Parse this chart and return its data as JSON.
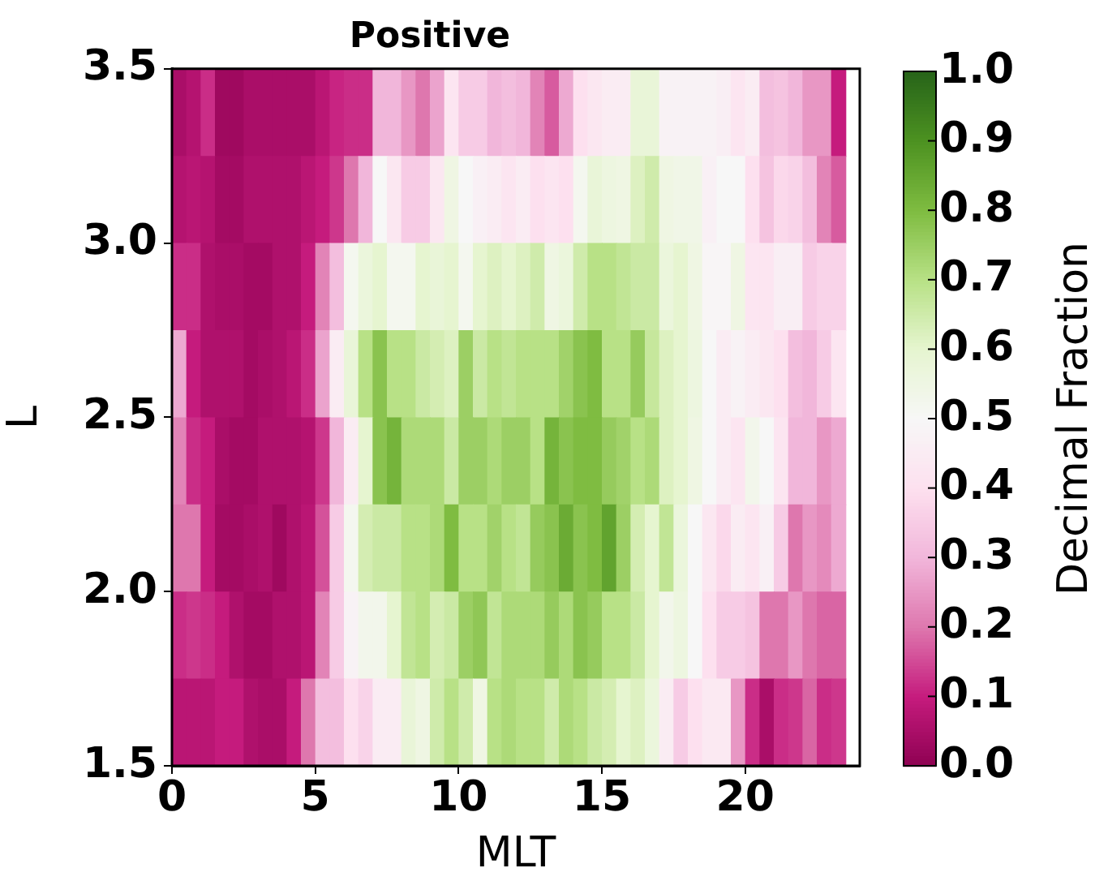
{
  "chart_data": {
    "type": "heatmap",
    "title": "Positive",
    "xlabel": "MLT",
    "ylabel": "L",
    "clabel": "Decimal Fraction",
    "x": [
      0.25,
      0.75,
      1.25,
      1.75,
      2.25,
      2.75,
      3.25,
      3.75,
      4.25,
      4.75,
      5.25,
      5.75,
      6.25,
      6.75,
      7.25,
      7.75,
      8.25,
      8.75,
      9.25,
      9.75,
      10.25,
      10.75,
      11.25,
      11.75,
      12.25,
      12.75,
      13.25,
      13.75,
      14.25,
      14.75,
      15.25,
      15.75,
      16.25,
      16.75,
      17.25,
      17.75,
      18.25,
      18.75,
      19.25,
      19.75,
      20.25,
      20.75,
      21.25,
      21.75,
      22.25,
      22.75,
      23.25
    ],
    "y": [
      3.375,
      3.125,
      2.875,
      2.625,
      2.375,
      2.125,
      1.875,
      1.625
    ],
    "cells": [
      [
        0.05,
        0.07,
        0.12,
        0.03,
        0.03,
        0.05,
        0.05,
        0.05,
        0.05,
        0.05,
        0.08,
        0.11,
        0.12,
        0.12,
        0.3,
        0.3,
        0.25,
        0.2,
        0.27,
        0.42,
        0.35,
        0.35,
        0.3,
        0.32,
        0.3,
        0.22,
        0.17,
        0.28,
        0.4,
        0.43,
        0.45,
        0.45,
        0.58,
        0.58,
        0.48,
        0.48,
        0.48,
        0.48,
        0.46,
        0.42,
        0.45,
        0.32,
        0.33,
        0.3,
        0.25,
        0.25,
        0.1
      ],
      [
        0.07,
        0.08,
        0.07,
        0.04,
        0.04,
        0.06,
        0.06,
        0.06,
        0.06,
        0.08,
        0.1,
        0.13,
        0.2,
        0.3,
        0.5,
        0.43,
        0.35,
        0.35,
        0.43,
        0.55,
        0.5,
        0.47,
        0.45,
        0.42,
        0.45,
        0.4,
        0.42,
        0.4,
        0.52,
        0.58,
        0.56,
        0.55,
        0.62,
        0.65,
        0.55,
        0.54,
        0.54,
        0.47,
        0.5,
        0.5,
        0.4,
        0.33,
        0.38,
        0.37,
        0.32,
        0.22,
        0.17
      ],
      [
        0.12,
        0.12,
        0.06,
        0.05,
        0.05,
        0.04,
        0.04,
        0.06,
        0.06,
        0.1,
        0.22,
        0.32,
        0.52,
        0.57,
        0.6,
        0.52,
        0.52,
        0.6,
        0.58,
        0.6,
        0.52,
        0.6,
        0.62,
        0.6,
        0.62,
        0.65,
        0.55,
        0.57,
        0.65,
        0.7,
        0.7,
        0.68,
        0.66,
        0.66,
        0.57,
        0.6,
        0.55,
        0.49,
        0.49,
        0.55,
        0.42,
        0.42,
        0.46,
        0.46,
        0.35,
        0.37,
        0.37
      ],
      [
        0.28,
        0.1,
        0.06,
        0.06,
        0.06,
        0.04,
        0.05,
        0.06,
        0.08,
        0.12,
        0.27,
        0.45,
        0.58,
        0.7,
        0.78,
        0.7,
        0.7,
        0.66,
        0.64,
        0.62,
        0.75,
        0.66,
        0.7,
        0.68,
        0.7,
        0.7,
        0.7,
        0.74,
        0.78,
        0.8,
        0.7,
        0.7,
        0.76,
        0.67,
        0.62,
        0.6,
        0.56,
        0.5,
        0.45,
        0.48,
        0.45,
        0.43,
        0.4,
        0.32,
        0.3,
        0.35,
        0.42
      ],
      [
        0.22,
        0.12,
        0.1,
        0.05,
        0.04,
        0.04,
        0.06,
        0.06,
        0.06,
        0.07,
        0.13,
        0.3,
        0.45,
        0.6,
        0.78,
        0.82,
        0.72,
        0.72,
        0.72,
        0.66,
        0.75,
        0.75,
        0.72,
        0.75,
        0.75,
        0.7,
        0.82,
        0.78,
        0.8,
        0.8,
        0.76,
        0.74,
        0.7,
        0.72,
        0.62,
        0.6,
        0.55,
        0.5,
        0.45,
        0.42,
        0.53,
        0.5,
        0.42,
        0.3,
        0.3,
        0.25,
        0.28
      ],
      [
        0.2,
        0.2,
        0.1,
        0.04,
        0.04,
        0.05,
        0.06,
        0.03,
        0.06,
        0.08,
        0.16,
        0.35,
        0.52,
        0.64,
        0.66,
        0.66,
        0.7,
        0.7,
        0.72,
        0.8,
        0.7,
        0.7,
        0.74,
        0.7,
        0.68,
        0.76,
        0.78,
        0.84,
        0.78,
        0.8,
        0.86,
        0.75,
        0.64,
        0.6,
        0.68,
        0.57,
        0.5,
        0.43,
        0.38,
        0.45,
        0.42,
        0.47,
        0.35,
        0.2,
        0.25,
        0.23,
        0.28
      ],
      [
        0.12,
        0.13,
        0.12,
        0.1,
        0.06,
        0.04,
        0.04,
        0.06,
        0.06,
        0.08,
        0.22,
        0.35,
        0.48,
        0.53,
        0.53,
        0.6,
        0.68,
        0.7,
        0.64,
        0.66,
        0.75,
        0.77,
        0.68,
        0.72,
        0.72,
        0.72,
        0.76,
        0.72,
        0.78,
        0.76,
        0.7,
        0.7,
        0.66,
        0.6,
        0.53,
        0.56,
        0.5,
        0.4,
        0.35,
        0.35,
        0.33,
        0.2,
        0.2,
        0.25,
        0.2,
        0.18,
        0.18
      ],
      [
        0.08,
        0.08,
        0.08,
        0.1,
        0.1,
        0.06,
        0.05,
        0.05,
        0.1,
        0.2,
        0.32,
        0.32,
        0.4,
        0.37,
        0.45,
        0.45,
        0.58,
        0.55,
        0.65,
        0.7,
        0.65,
        0.55,
        0.7,
        0.72,
        0.7,
        0.7,
        0.65,
        0.72,
        0.7,
        0.66,
        0.64,
        0.6,
        0.62,
        0.57,
        0.45,
        0.35,
        0.4,
        0.44,
        0.44,
        0.25,
        0.12,
        0.05,
        0.12,
        0.13,
        0.18,
        0.12,
        0.13
      ]
    ],
    "xlim": [
      0,
      24
    ],
    "xticks": [
      0,
      5,
      10,
      15,
      20
    ],
    "ylim": [
      1.5,
      3.5
    ],
    "yticks": [
      {
        "value": 1.5,
        "label": "1.5"
      },
      {
        "value": 2,
        "label": "2.0"
      },
      {
        "value": 2.5,
        "label": "2.5"
      },
      {
        "value": 3,
        "label": "3.0"
      },
      {
        "value": 3.5,
        "label": "3.5"
      }
    ],
    "clim": [
      0,
      1
    ],
    "cticks": [
      {
        "value": 0,
        "label": "0.0"
      },
      {
        "value": 0.1,
        "label": "0.1"
      },
      {
        "value": 0.2,
        "label": "0.2"
      },
      {
        "value": 0.3,
        "label": "0.3"
      },
      {
        "value": 0.4,
        "label": "0.4"
      },
      {
        "value": 0.5,
        "label": "0.5"
      },
      {
        "value": 0.6,
        "label": "0.6"
      },
      {
        "value": 0.7,
        "label": "0.7"
      },
      {
        "value": 0.8,
        "label": "0.8"
      },
      {
        "value": 0.9,
        "label": "0.9"
      },
      {
        "value": 1,
        "label": "1.0"
      }
    ]
  }
}
